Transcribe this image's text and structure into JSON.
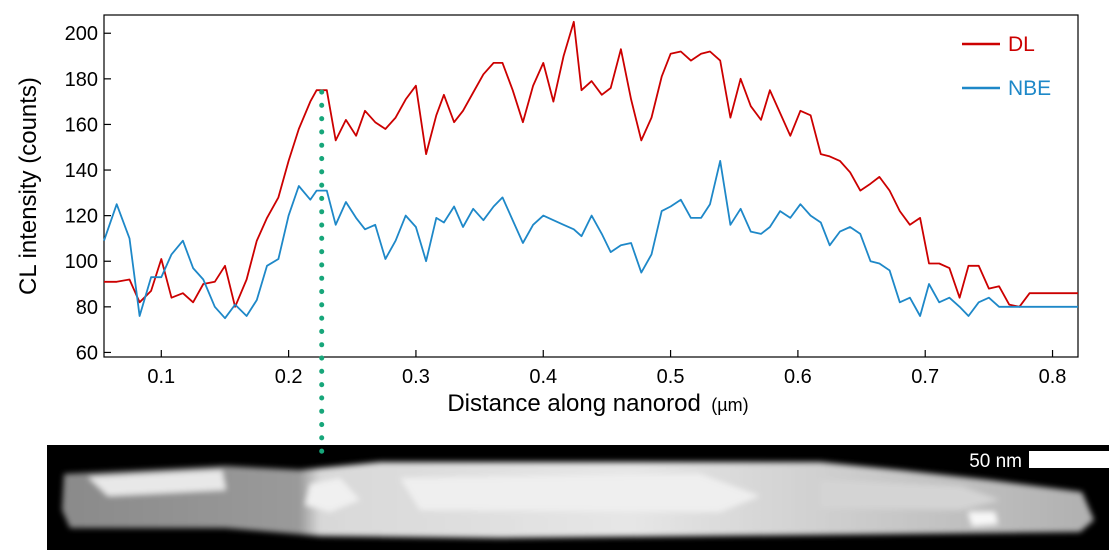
{
  "chart_data": {
    "type": "line",
    "xlabel": "Distance along nanorod",
    "xlabel_unit": "(µm)",
    "ylabel": "CL intensity (counts)",
    "xlim": [
      0.055,
      0.82
    ],
    "ylim": [
      58,
      208
    ],
    "xticks": [
      0.1,
      0.2,
      0.3,
      0.4,
      0.5,
      0.6,
      0.7,
      0.8
    ],
    "xtick_labels": [
      "0.1",
      "0.2",
      "0.3",
      "0.4",
      "0.5",
      "0.6",
      "0.7",
      "0.8"
    ],
    "yticks": [
      60,
      80,
      100,
      120,
      140,
      160,
      180,
      200
    ],
    "ytick_labels": [
      "60",
      "80",
      "100",
      "120",
      "140",
      "160",
      "180",
      "200"
    ],
    "legend_position": "top-right",
    "grid": false,
    "marker_x": 0.226,
    "series": [
      {
        "name": "DL",
        "color": "#cc0000",
        "x": [
          0.055,
          0.065,
          0.075,
          0.083,
          0.092,
          0.1,
          0.108,
          0.117,
          0.125,
          0.133,
          0.142,
          0.15,
          0.158,
          0.167,
          0.175,
          0.183,
          0.192,
          0.2,
          0.208,
          0.217,
          0.222,
          0.23,
          0.237,
          0.245,
          0.253,
          0.26,
          0.268,
          0.276,
          0.284,
          0.292,
          0.3,
          0.308,
          0.316,
          0.322,
          0.33,
          0.337,
          0.345,
          0.353,
          0.361,
          0.368,
          0.376,
          0.384,
          0.392,
          0.4,
          0.408,
          0.416,
          0.424,
          0.43,
          0.438,
          0.446,
          0.453,
          0.461,
          0.469,
          0.477,
          0.485,
          0.493,
          0.5,
          0.508,
          0.516,
          0.524,
          0.531,
          0.539,
          0.547,
          0.555,
          0.563,
          0.571,
          0.578,
          0.586,
          0.594,
          0.602,
          0.61,
          0.618,
          0.625,
          0.633,
          0.641,
          0.649,
          0.657,
          0.664,
          0.672,
          0.68,
          0.688,
          0.696,
          0.703,
          0.711,
          0.719,
          0.727,
          0.734,
          0.742,
          0.75,
          0.758,
          0.766,
          0.774,
          0.782,
          0.79,
          0.797,
          0.805,
          0.813,
          0.82
        ],
        "values": [
          91,
          91,
          92,
          82,
          87,
          101,
          84,
          86,
          82,
          90,
          91,
          98,
          80,
          92,
          109,
          119,
          128,
          144,
          158,
          170,
          175,
          175,
          153,
          162,
          155,
          166,
          161,
          158,
          163,
          171,
          177,
          147,
          164,
          173,
          161,
          166,
          174,
          182,
          187,
          187,
          175,
          161,
          177,
          187,
          170,
          190,
          205,
          175,
          179,
          173,
          176,
          193,
          171,
          153,
          163,
          181,
          191,
          192,
          188,
          191,
          192,
          188,
          163,
          180,
          168,
          162,
          175,
          165,
          155,
          166,
          164,
          147,
          146,
          144,
          139,
          131,
          134,
          137,
          131,
          122,
          116,
          119,
          99,
          99,
          97,
          84,
          98,
          98,
          88,
          89,
          81,
          80,
          86,
          86,
          86,
          86,
          86,
          86
        ]
      },
      {
        "name": "NBE",
        "color": "#1e88c8",
        "x": [
          0.055,
          0.065,
          0.075,
          0.083,
          0.092,
          0.1,
          0.108,
          0.117,
          0.125,
          0.133,
          0.142,
          0.15,
          0.158,
          0.167,
          0.175,
          0.183,
          0.192,
          0.2,
          0.208,
          0.217,
          0.222,
          0.23,
          0.237,
          0.245,
          0.253,
          0.26,
          0.268,
          0.276,
          0.284,
          0.292,
          0.3,
          0.308,
          0.316,
          0.322,
          0.33,
          0.337,
          0.345,
          0.353,
          0.361,
          0.368,
          0.376,
          0.384,
          0.392,
          0.4,
          0.408,
          0.416,
          0.424,
          0.43,
          0.438,
          0.446,
          0.453,
          0.461,
          0.469,
          0.477,
          0.485,
          0.493,
          0.5,
          0.508,
          0.516,
          0.524,
          0.531,
          0.539,
          0.547,
          0.555,
          0.563,
          0.571,
          0.578,
          0.586,
          0.594,
          0.602,
          0.61,
          0.618,
          0.625,
          0.633,
          0.641,
          0.649,
          0.657,
          0.664,
          0.672,
          0.68,
          0.688,
          0.696,
          0.703,
          0.711,
          0.719,
          0.727,
          0.734,
          0.742,
          0.75,
          0.758,
          0.766,
          0.774,
          0.782,
          0.79,
          0.797,
          0.805,
          0.813,
          0.82
        ],
        "values": [
          109,
          125,
          110,
          76,
          93,
          93,
          103,
          109,
          97,
          92,
          80,
          75,
          81,
          76,
          83,
          98,
          101,
          120,
          133,
          127,
          131,
          131,
          116,
          126,
          119,
          114,
          116,
          101,
          109,
          120,
          115,
          100,
          119,
          117,
          124,
          115,
          123,
          118,
          124,
          128,
          118,
          108,
          116,
          120,
          118,
          116,
          114,
          111,
          120,
          112,
          104,
          107,
          108,
          95,
          103,
          122,
          124,
          127,
          119,
          119,
          125,
          144,
          116,
          123,
          113,
          112,
          115,
          122,
          119,
          125,
          120,
          117,
          107,
          113,
          115,
          112,
          100,
          99,
          96,
          82,
          84,
          76,
          90,
          82,
          84,
          80,
          76,
          82,
          84,
          80,
          80,
          80,
          80,
          80,
          80,
          80,
          80,
          80
        ]
      }
    ]
  },
  "image_panel": {
    "scale_bar_label": "50 nm"
  }
}
